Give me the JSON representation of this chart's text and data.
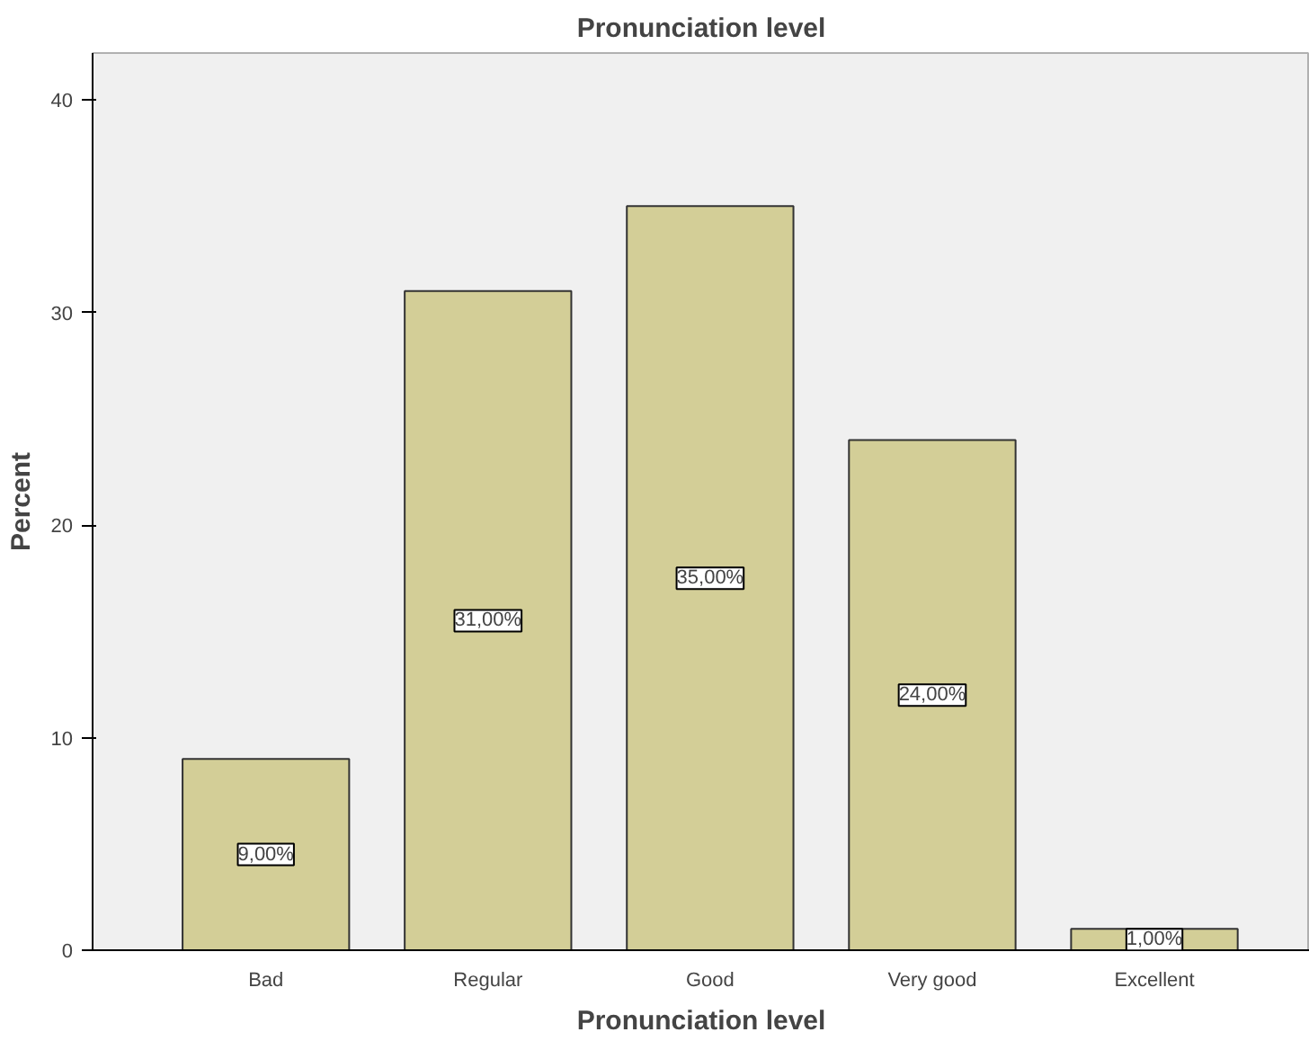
{
  "chart_data": {
    "type": "bar",
    "title": "Pronunciation level",
    "xlabel": "Pronunciation level",
    "ylabel": "Percent",
    "categories": [
      "Bad",
      "Regular",
      "Good",
      "Very good",
      "Excellent"
    ],
    "values": [
      9,
      31,
      35,
      24,
      1
    ],
    "value_labels": [
      "9,00%",
      "31,00%",
      "35,00%",
      "24,00%",
      "1,00%"
    ],
    "color": "#d3ce97",
    "ylim": [
      0,
      42.2
    ],
    "yticks": [
      0,
      10,
      20,
      30,
      40
    ],
    "grid": false
  }
}
